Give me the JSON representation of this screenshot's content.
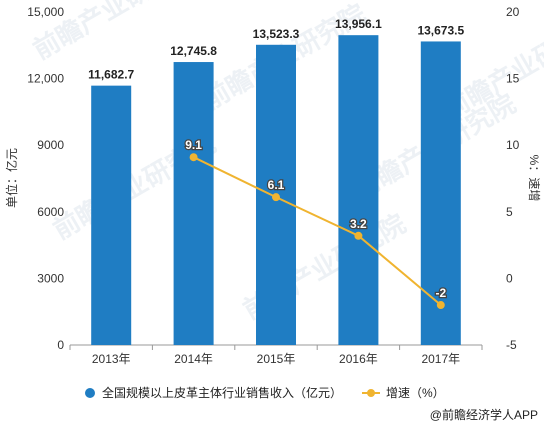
{
  "chart_data": {
    "type": "bar",
    "categories": [
      "2013年",
      "2014年",
      "2015年",
      "2016年",
      "2017年"
    ],
    "series": [
      {
        "name": "全国规模以上皮革主体行业销售收入（亿元）",
        "type": "bar",
        "axis": "left",
        "values": [
          11682.7,
          12745.8,
          13523.3,
          13956.1,
          13673.5
        ],
        "labels": [
          "11,682.7",
          "12,745.8",
          "13,523.3",
          "13,956.1",
          "13,673.5"
        ],
        "color": "#1F7DC3"
      },
      {
        "name": "增速（%）",
        "type": "line",
        "axis": "right",
        "values": [
          null,
          9.1,
          6.1,
          3.2,
          -2
        ],
        "labels": [
          "",
          "9.1",
          "6.1",
          "3.2",
          "-2"
        ],
        "color": "#F0B430"
      }
    ],
    "ylabel": "单位：亿元",
    "y2label": "%：速增",
    "ylim": [
      0,
      15000
    ],
    "y2lim": [
      -5,
      20
    ],
    "yticks": [
      "0",
      "3000",
      "6000",
      "9000",
      "12,000",
      "15,000"
    ],
    "y2ticks": [
      "-5",
      "0",
      "5",
      "10",
      "15",
      "20"
    ],
    "grid": false,
    "legend": "bottom",
    "watermark": "前瞻产业研究院"
  },
  "source": "@前瞻经济学人APP"
}
